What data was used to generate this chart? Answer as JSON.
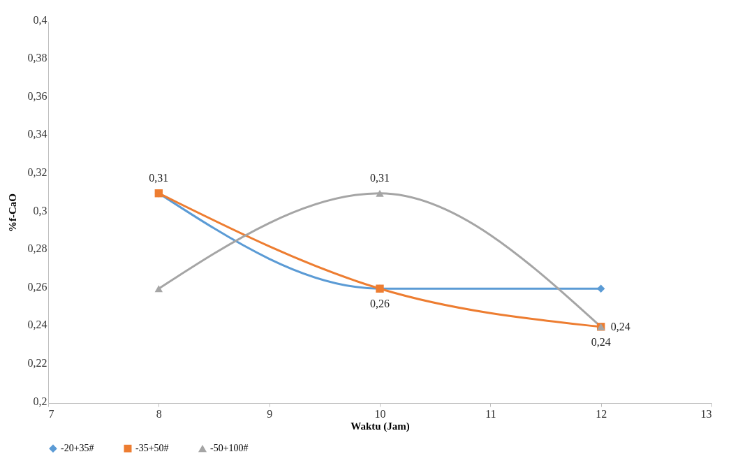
{
  "chart_data": {
    "type": "line",
    "xlabel": "Waktu (Jam)",
    "ylabel": "%f-CaO",
    "x": [
      8,
      10,
      12
    ],
    "xlim": [
      7,
      13
    ],
    "xticks": [
      7,
      8,
      9,
      10,
      11,
      12,
      13
    ],
    "ylim": [
      0.2,
      0.4
    ],
    "yticks": [
      {
        "value": 0.2,
        "label": "0,2"
      },
      {
        "value": 0.22,
        "label": "0,22"
      },
      {
        "value": 0.24,
        "label": "0,24"
      },
      {
        "value": 0.26,
        "label": "0,26"
      },
      {
        "value": 0.28,
        "label": "0,28"
      },
      {
        "value": 0.3,
        "label": "0,3"
      },
      {
        "value": 0.32,
        "label": "0,32"
      },
      {
        "value": 0.34,
        "label": "0,34"
      },
      {
        "value": 0.36,
        "label": "0,36"
      },
      {
        "value": 0.38,
        "label": "0,38"
      },
      {
        "value": 0.4,
        "label": "0,4"
      }
    ],
    "grid": false,
    "legend": "bottom",
    "line_style": "solid",
    "series": [
      {
        "name": "-20+35#",
        "color": "#5b9bd5",
        "marker": "diamond",
        "values": [
          0.31,
          0.26,
          0.26
        ]
      },
      {
        "name": "-35+50#",
        "color": "#ed7d31",
        "marker": "square",
        "values": [
          0.31,
          0.26,
          0.24
        ],
        "value_labels": [
          "0,31",
          "0,26",
          "0,24"
        ]
      },
      {
        "name": "-50+100#",
        "color": "#a5a5a5",
        "marker": "triangle",
        "values": [
          0.26,
          0.31,
          0.24
        ],
        "value_labels": [
          null,
          "0,31",
          "0,24"
        ]
      }
    ]
  }
}
